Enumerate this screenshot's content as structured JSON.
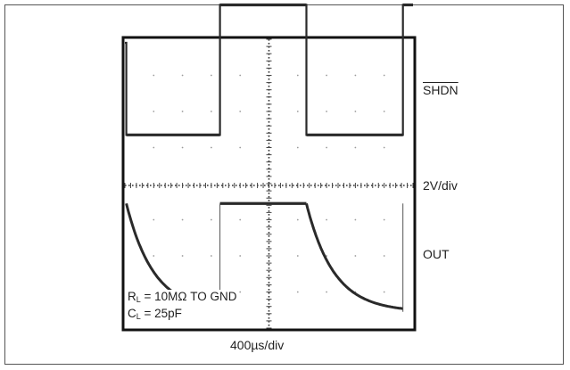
{
  "chart_data": {
    "type": "line",
    "xlabel": "400µs/div",
    "x_divisions": 10,
    "y_divisions": 8,
    "ylabel": "2V/div",
    "grid": true,
    "series": [
      {
        "name": "SHDN",
        "points": [
          [
            0,
            3.95
          ],
          [
            0.05,
            3.95
          ],
          [
            0.05,
            1.4
          ],
          [
            3.3,
            1.4
          ],
          [
            3.3,
            5.0
          ],
          [
            6.3,
            5.0
          ],
          [
            6.3,
            1.4
          ],
          [
            9.65,
            1.4
          ],
          [
            9.65,
            5.0
          ],
          [
            10,
            5.0
          ]
        ]
      },
      {
        "name": "OUT",
        "waveform": "rc_decay",
        "high_level_div": -0.5,
        "low_level_div": -3.5,
        "fall_segments": [
          [
            0.05,
            3.3
          ],
          [
            6.3,
            9.65
          ]
        ],
        "high_segments": [
          [
            3.3,
            6.3
          ]
        ],
        "rise_edges": [
          3.3,
          9.65
        ]
      }
    ]
  },
  "labels": {
    "shdn": "SHDN",
    "scale": "2V/div",
    "out": "OUT",
    "timebase": "400µs/div",
    "rl_sym": "R",
    "rl_sub": "L",
    "rl_val": " = 10MΩ TO GND",
    "cl_sym": "C",
    "cl_sub": "L",
    "cl_val": " = 25pF"
  }
}
